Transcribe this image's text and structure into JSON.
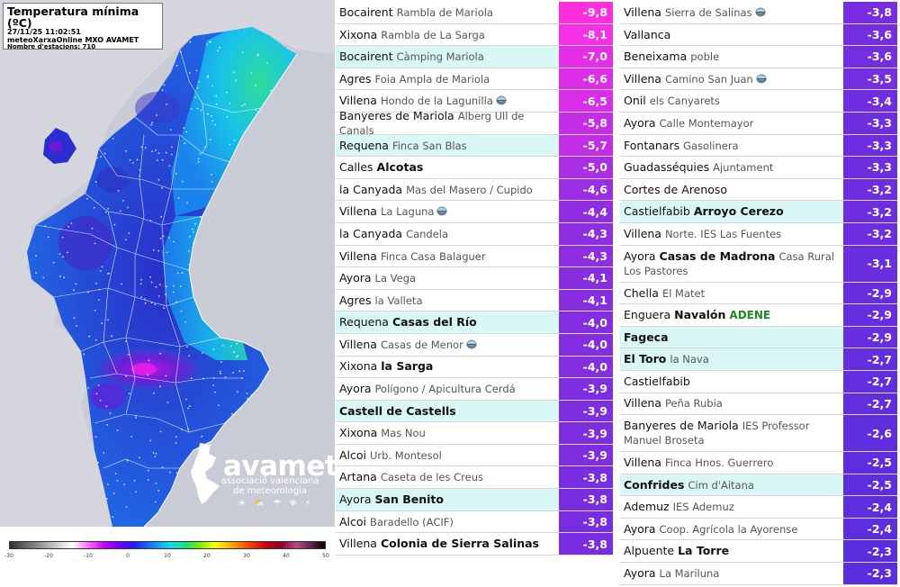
{
  "map": {
    "title": "Temperatura mínima (ºC)",
    "timestamp": "27/11/25 11:02:51",
    "source": "meteoXarxaOnline MXO AVAMET",
    "station_count": "Nombre d'estacions: 710",
    "scale_ticks": [
      "-30",
      "-20",
      "-10",
      "0",
      "10",
      "20",
      "30",
      "40",
      "50"
    ],
    "logo": {
      "wordmark": "avamet",
      "line1": "associació valenciana",
      "line2": "de meteorologia",
      "weather_icons": [
        "sun-icon",
        "cloud-sun-icon",
        "rain-icon",
        "snow-icon",
        "storm-icon"
      ]
    },
    "colors": {
      "sea": "#c9cbd7",
      "land_dark": "#3a45cc",
      "land_blue": "#1e90f0",
      "land_cyan": "#12d4ec",
      "coast_green": "#2de296",
      "cold_core": "#8a00e0"
    }
  },
  "stations_left": [
    {
      "place": "Bocairent",
      "station": "Rambla de Mariola",
      "value": "-9,8",
      "color": "#ff2fe0"
    },
    {
      "place": "Xixona",
      "station": "Rambla de La Sarga",
      "value": "-8,1",
      "color": "#f530e6"
    },
    {
      "place": "Bocairent",
      "station": "Càmping Mariola",
      "value": "-7,0",
      "color": "#e62ee8",
      "highlight": true
    },
    {
      "place": "Agres",
      "station": "Foia Ampla de Mariola",
      "value": "-6,6",
      "color": "#dc2ee8"
    },
    {
      "place": "Villena",
      "station": "Hondo de la Lagunilla",
      "value": "-6,5",
      "color": "#d82ee8",
      "sat": true
    },
    {
      "place": "Banyeres de Mariola",
      "station": "Alberg Ull de Canals",
      "value": "-5,8",
      "color": "#c52ee6"
    },
    {
      "place": "Requena",
      "station": "Finca San Blas",
      "value": "-5,7",
      "color": "#c22ee6",
      "highlight": true
    },
    {
      "place": "Calles",
      "station": "Alcotas",
      "station_bold": true,
      "value": "-5,0",
      "color": "#aa2ee4"
    },
    {
      "place": "la Canyada",
      "station": "Mas del Masero / Cupido",
      "value": "-4,6",
      "color": "#992ee2"
    },
    {
      "place": "Villena",
      "station": "La Laguna",
      "value": "-4,4",
      "color": "#922ee2",
      "sat": true
    },
    {
      "place": "la Canyada",
      "station": "Candela",
      "value": "-4,3",
      "color": "#8e2ee2"
    },
    {
      "place": "Villena",
      "station": "Finca Casa Balaguer",
      "value": "-4,3",
      "color": "#8e2ee2"
    },
    {
      "place": "Ayora",
      "station": "La Vega",
      "value": "-4,1",
      "color": "#872ee1"
    },
    {
      "place": "Agres",
      "station": "la Valleta",
      "value": "-4,1",
      "color": "#872ee1"
    },
    {
      "place": "Requena",
      "station": "Casas del Río",
      "station_bold": true,
      "value": "-4,0",
      "color": "#832ee1",
      "highlight": true
    },
    {
      "place": "Villena",
      "station": "Casas de Menor",
      "value": "-4,0",
      "color": "#832ee1",
      "sat": true
    },
    {
      "place": "Xixona",
      "station": "la Sarga",
      "station_bold": true,
      "value": "-4,0",
      "color": "#832ee1"
    },
    {
      "place": "Ayora",
      "station": "Polígono / Apicultura Cerdá",
      "value": "-3,9",
      "color": "#7d2ee0"
    },
    {
      "place": "Castell de Castells",
      "station": "",
      "place_bold": true,
      "value": "-3,9",
      "color": "#7d2ee0",
      "highlight": true
    },
    {
      "place": "Xixona",
      "station": "Mas Nou",
      "value": "-3,9",
      "color": "#7d2ee0"
    },
    {
      "place": "Alcoi",
      "station": "Urb. Montesol",
      "value": "-3,9",
      "color": "#7d2ee0"
    },
    {
      "place": "Artana",
      "station": "Caseta de les Creus",
      "value": "-3,8",
      "color": "#782ee0"
    },
    {
      "place": "Ayora",
      "station": "San Benito",
      "station_bold": true,
      "value": "-3,8",
      "color": "#782ee0",
      "highlight": true
    },
    {
      "place": "Alcoi",
      "station": "Baradello (ACIF)",
      "value": "-3,8",
      "color": "#782ee0"
    },
    {
      "place": "Villena",
      "station": "Colonia de Sierra Salinas",
      "station_bold": true,
      "value": "-3,8",
      "color": "#782ee0"
    }
  ],
  "stations_right": [
    {
      "place": "Villena",
      "station": "Sierra de Salinas",
      "value": "-3,8",
      "color": "#782ee0",
      "sat": true
    },
    {
      "place": "Vallanca",
      "station": "",
      "value": "-3,6",
      "color": "#742ee0"
    },
    {
      "place": "Beneixama",
      "station": "poble",
      "value": "-3,6",
      "color": "#742ee0"
    },
    {
      "place": "Villena",
      "station": "Camino San Juan",
      "value": "-3,5",
      "color": "#722ee0",
      "sat": true
    },
    {
      "place": "Onil",
      "station": "els Canyarets",
      "value": "-3,4",
      "color": "#702ee0"
    },
    {
      "place": "Ayora",
      "station": "Calle Montemayor",
      "value": "-3,3",
      "color": "#6e2edf"
    },
    {
      "place": "Fontanars",
      "station": "Gasolinera",
      "value": "-3,3",
      "color": "#6e2edf"
    },
    {
      "place": "Guadasséquies",
      "station": "Ajuntament",
      "value": "-3,3",
      "color": "#6e2edf"
    },
    {
      "place": "Cortes de Arenoso",
      "station": "",
      "value": "-3,2",
      "color": "#6c2edf"
    },
    {
      "place": "Castielfabib",
      "station": "Arroyo Cerezo",
      "station_bold": true,
      "value": "-3,2",
      "color": "#6c2edf",
      "highlight": true
    },
    {
      "place": "Villena",
      "station": "Norte. IES Las Fuentes",
      "value": "-3,2",
      "color": "#6c2edf"
    },
    {
      "place": "Ayora",
      "station": "Casas de Madrona",
      "station_bold": true,
      "station_extra": "Casa Rural Los Pastores",
      "value": "-3,1",
      "color": "#6a2edf",
      "tall": true
    },
    {
      "place": "Chella",
      "station": "El Matet",
      "value": "-2,9",
      "color": "#662edf"
    },
    {
      "place": "Enguera",
      "station": "Navalón",
      "station_bold": true,
      "org": "ADENE",
      "value": "-2,9",
      "color": "#662edf"
    },
    {
      "place": "Fageca",
      "station": "",
      "place_bold": true,
      "value": "-2,9",
      "color": "#662edf",
      "highlight": true
    },
    {
      "place": "El Toro",
      "station": "la Nava",
      "place_bold": true,
      "value": "-2,7",
      "color": "#622ede",
      "highlight": true
    },
    {
      "place": "Castielfabib",
      "station": "",
      "value": "-2,7",
      "color": "#622ede"
    },
    {
      "place": "Villena",
      "station": "Peña Rubia",
      "value": "-2,7",
      "color": "#622ede"
    },
    {
      "place": "Banyeres de Mariola",
      "station": "IES Professor Manuel Broseta",
      "value": "-2,6",
      "color": "#602ede",
      "tall": true
    },
    {
      "place": "Villena",
      "station": "Finca Hnos. Guerrero",
      "value": "-2,5",
      "color": "#5e2ede"
    },
    {
      "place": "Confrides",
      "station": "Cim d'Aitana",
      "place_bold": true,
      "value": "-2,5",
      "color": "#5e2ede",
      "highlight": true
    },
    {
      "place": "Ademuz",
      "station": "IES Ademuz",
      "value": "-2,4",
      "color": "#5c2ede"
    },
    {
      "place": "Ayora",
      "station": "Coop. Agrícola la Ayorense",
      "value": "-2,4",
      "color": "#5c2ede"
    },
    {
      "place": "Alpuente",
      "station": "La Torre",
      "station_bold": true,
      "value": "-2,3",
      "color": "#5a2ede"
    },
    {
      "place": "Ayora",
      "station": "La Mariluna",
      "value": "-2,3",
      "color": "#5a2ede"
    }
  ]
}
